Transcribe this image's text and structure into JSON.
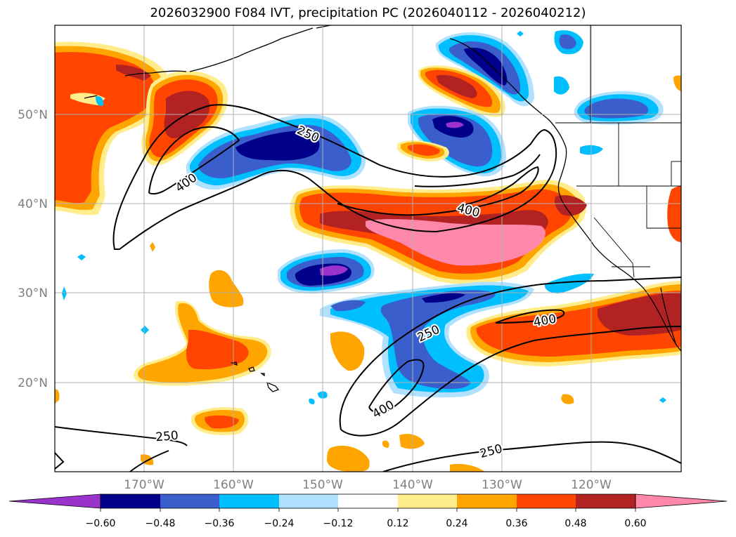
{
  "title": "2026032900 F084 IVT, precipitation PC (2026040112 - 2026040212)",
  "latitudes": [
    "50°N",
    "40°N",
    "30°N",
    "20°N"
  ],
  "longitudes": [
    "170°W",
    "160°W",
    "150°W",
    "140°W",
    "130°W",
    "120°W"
  ],
  "ivt_contour_labels": [
    {
      "name": "ivt-label-250-a",
      "text": "250"
    },
    {
      "name": "ivt-label-400-a",
      "text": "400"
    },
    {
      "name": "ivt-label-400-b",
      "text": "400"
    },
    {
      "name": "ivt-label-250-b",
      "text": "250"
    },
    {
      "name": "ivt-label-400-c",
      "text": "400"
    },
    {
      "name": "ivt-label-400-d",
      "text": "400"
    },
    {
      "name": "ivt-label-250-c",
      "text": "250"
    },
    {
      "name": "ivt-label-250-d",
      "text": "250"
    }
  ],
  "colorbar": {
    "ticks": [
      "−0.60",
      "−0.48",
      "−0.36",
      "−0.24",
      "−0.12",
      "0.12",
      "0.24",
      "0.36",
      "0.48",
      "0.60"
    ],
    "colors": [
      "#9933cc",
      "#00008b",
      "#3a5fcd",
      "#00bfff",
      "#b0e2ff",
      "#ffffff",
      "#ffec8b",
      "#ffa500",
      "#ff4500",
      "#b22222",
      "#ff88aa"
    ]
  },
  "chart_data": {
    "type": "map",
    "title": "2026032900 F084 IVT, precipitation PC (2026040112 - 2026040212)",
    "fill_variable": "precipitation PC",
    "contour_variable": "IVT",
    "contour_levels": [
      250,
      400
    ],
    "color_levels": [
      -0.6,
      -0.48,
      -0.36,
      -0.24,
      -0.12,
      0.12,
      0.24,
      0.36,
      0.48,
      0.6
    ],
    "lon_range": [
      -179,
      -109
    ],
    "lat_range": [
      10,
      60
    ]
  }
}
